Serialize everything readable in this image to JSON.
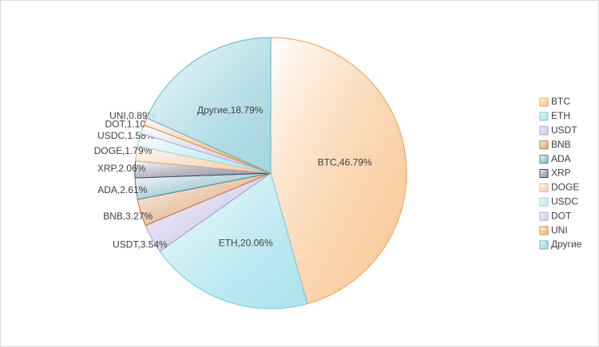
{
  "chart_data": {
    "type": "pie",
    "categories": [
      "BTC",
      "ETH",
      "USDT",
      "BNB",
      "ADA",
      "XRP",
      "DOGE",
      "USDC",
      "DOT",
      "UNI",
      "Другие"
    ],
    "values": [
      46.79,
      20.06,
      3.54,
      3.27,
      2.61,
      2.06,
      1.79,
      1.58,
      1.1,
      0.89,
      18.79
    ],
    "value_labels": [
      "BTC,46.79%",
      "ETH,20.06%",
      "USDT,3.54%",
      "BNB,3.27%",
      "ADA,2.61%",
      "XRP,2.06%",
      "DOGE,1.79%",
      "USDC,1.58%",
      "DOT,1.10%",
      "UNI,0.89%",
      "Другие,18.79%"
    ],
    "colors": [
      "#f4a04a",
      "#6ecde0",
      "#a99bd6",
      "#c8702a",
      "#3d8fa0",
      "#4a4660",
      "#f0b27a",
      "#8fd8e0",
      "#b4a8dc",
      "#e8862a",
      "#5cb6c8"
    ],
    "legend": "right"
  }
}
